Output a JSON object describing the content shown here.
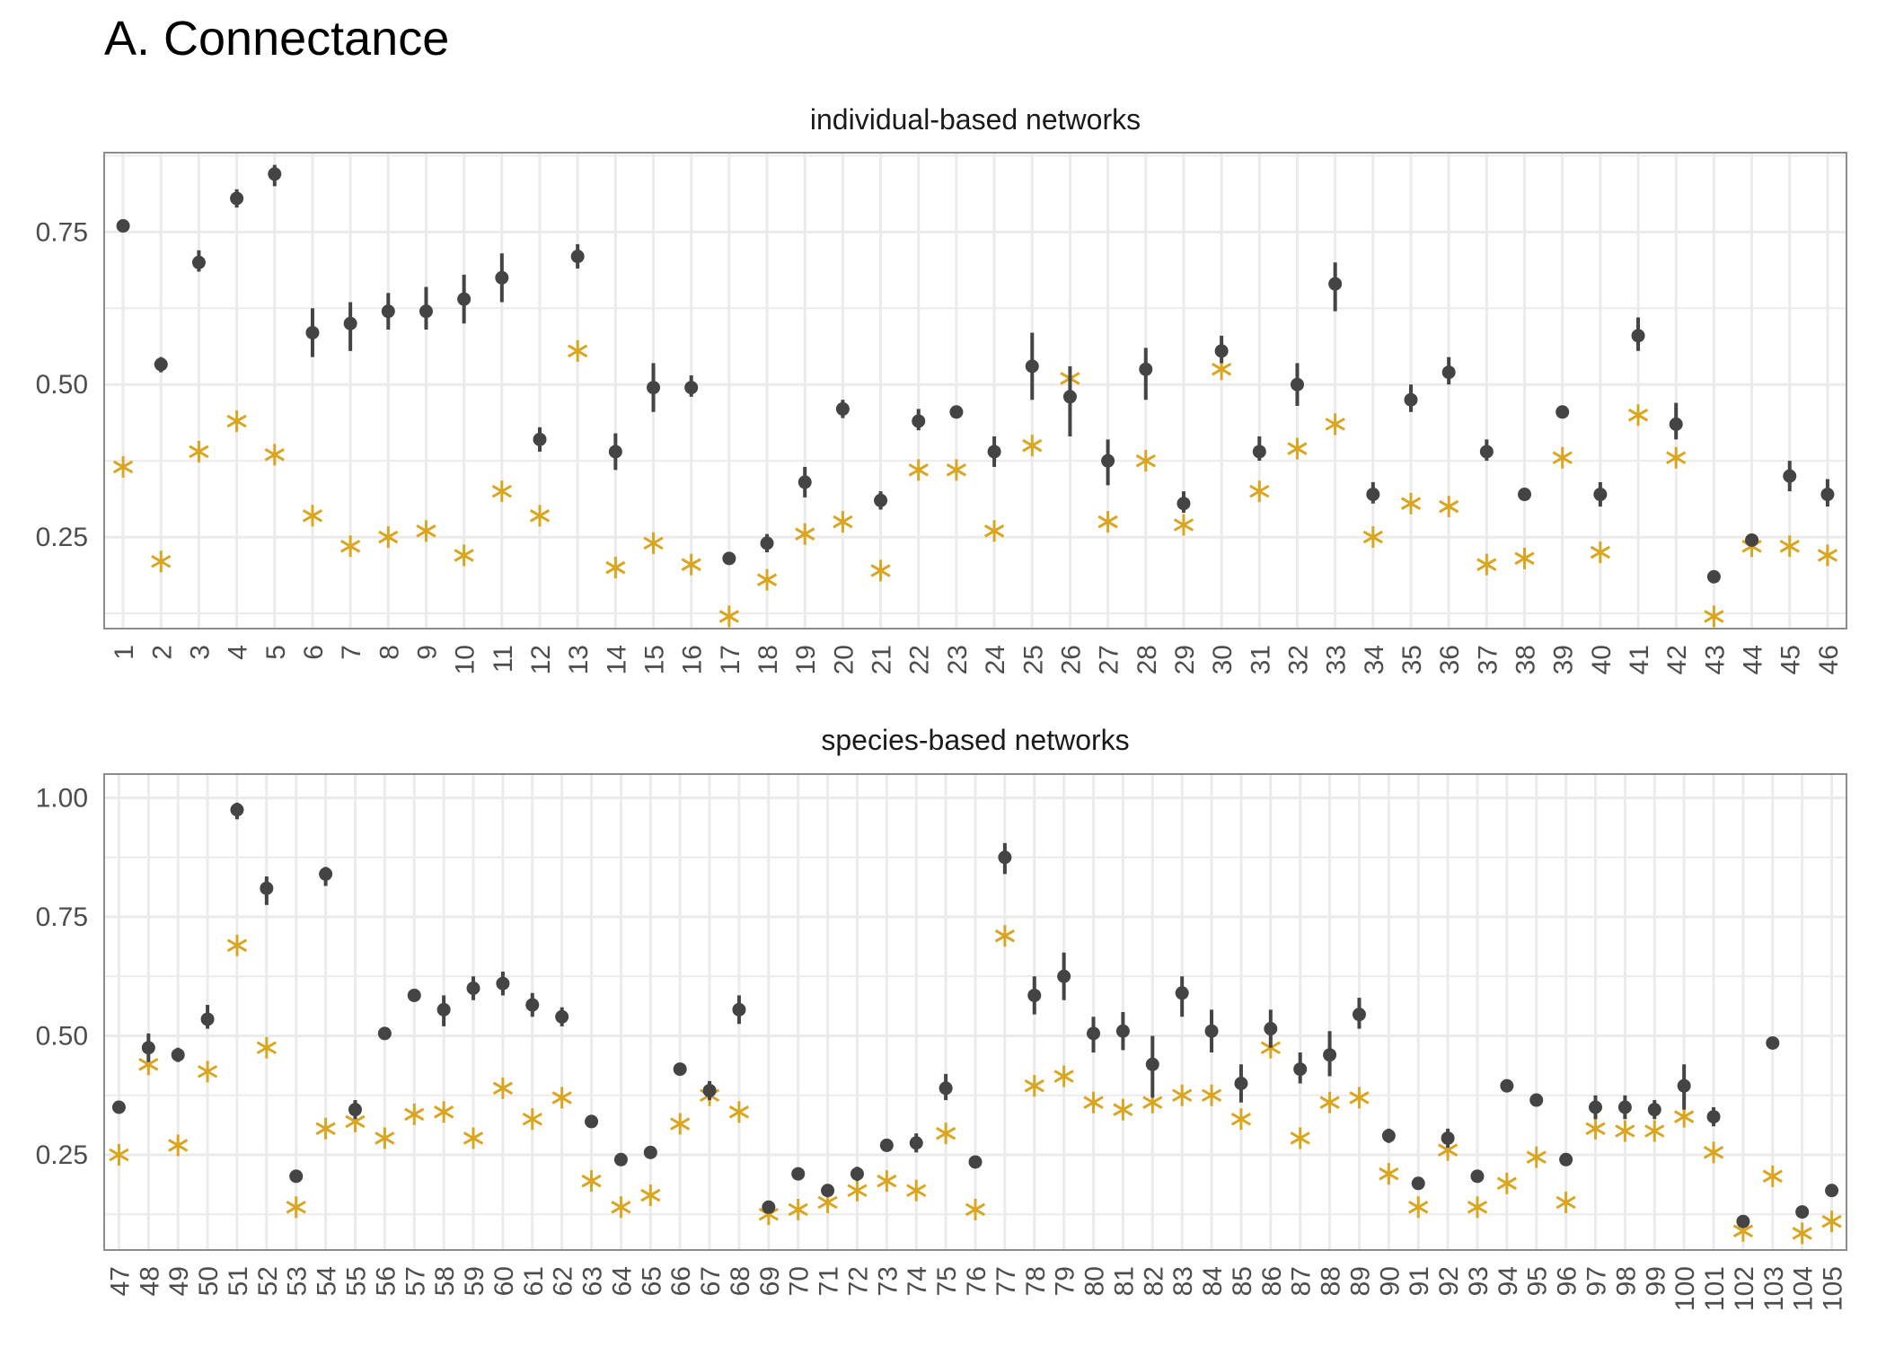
{
  "title": "A. Connectance",
  "colors": {
    "observed": "#444444",
    "expected": "#DAA520",
    "grid": "#ebebeb",
    "border": "#8c8c8c"
  },
  "chart_data": [
    {
      "type": "scatter",
      "panel": "individual-based networks",
      "ylim": [
        0.1,
        0.88
      ],
      "yticks": [
        0.25,
        0.5,
        0.75
      ],
      "ytick_labels": [
        "0.25",
        "0.50",
        "0.75"
      ],
      "grid": true,
      "categories": [
        "1",
        "2",
        "3",
        "4",
        "5",
        "6",
        "7",
        "8",
        "9",
        "10",
        "11",
        "12",
        "13",
        "14",
        "15",
        "16",
        "17",
        "18",
        "19",
        "20",
        "21",
        "22",
        "23",
        "24",
        "25",
        "26",
        "27",
        "28",
        "29",
        "30",
        "31",
        "32",
        "33",
        "34",
        "35",
        "36",
        "37",
        "38",
        "39",
        "40",
        "41",
        "42",
        "43",
        "44",
        "45",
        "46"
      ],
      "series": [
        {
          "marker": "point-with-range",
          "values": [
            0.76,
            0.533,
            0.7,
            0.805,
            0.845,
            0.585,
            0.6,
            0.62,
            0.62,
            0.64,
            0.675,
            0.41,
            0.71,
            0.39,
            0.495,
            0.495,
            0.215,
            0.24,
            0.34,
            0.46,
            0.31,
            0.44,
            0.455,
            0.39,
            0.53,
            0.48,
            0.375,
            0.525,
            0.305,
            0.555,
            0.39,
            0.5,
            0.665,
            0.32,
            0.475,
            0.52,
            0.39,
            0.32,
            0.455,
            0.32,
            0.58,
            0.435,
            0.185,
            0.245,
            0.35,
            0.32
          ],
          "lower": [
            0.755,
            0.52,
            0.685,
            0.79,
            0.825,
            0.545,
            0.555,
            0.59,
            0.59,
            0.6,
            0.635,
            0.39,
            0.69,
            0.36,
            0.455,
            0.48,
            0.21,
            0.225,
            0.315,
            0.445,
            0.295,
            0.425,
            0.445,
            0.365,
            0.475,
            0.415,
            0.335,
            0.475,
            0.29,
            0.535,
            0.375,
            0.465,
            0.62,
            0.305,
            0.455,
            0.5,
            0.375,
            0.31,
            0.445,
            0.3,
            0.555,
            0.41,
            0.18,
            0.24,
            0.325,
            0.3
          ],
          "upper": [
            0.765,
            0.545,
            0.72,
            0.82,
            0.86,
            0.625,
            0.635,
            0.65,
            0.66,
            0.68,
            0.715,
            0.43,
            0.73,
            0.42,
            0.535,
            0.515,
            0.22,
            0.255,
            0.365,
            0.475,
            0.325,
            0.46,
            0.465,
            0.415,
            0.585,
            0.53,
            0.41,
            0.56,
            0.325,
            0.58,
            0.415,
            0.535,
            0.7,
            0.34,
            0.5,
            0.545,
            0.41,
            0.33,
            0.465,
            0.34,
            0.61,
            0.47,
            0.195,
            0.255,
            0.375,
            0.345
          ]
        },
        {
          "marker": "asterisk",
          "values": [
            0.365,
            0.21,
            0.39,
            0.44,
            0.385,
            0.285,
            0.235,
            0.25,
            0.26,
            0.22,
            0.325,
            0.285,
            0.555,
            0.2,
            0.24,
            0.205,
            0.12,
            0.18,
            0.255,
            0.275,
            0.195,
            0.36,
            0.36,
            0.26,
            0.4,
            0.51,
            0.275,
            0.375,
            0.27,
            0.525,
            0.325,
            0.395,
            0.435,
            0.25,
            0.305,
            0.3,
            0.205,
            0.215,
            0.38,
            0.225,
            0.45,
            0.38,
            0.12,
            0.235,
            0.235,
            0.22
          ]
        }
      ]
    },
    {
      "type": "scatter",
      "panel": "species-based networks",
      "ylim": [
        0.05,
        1.05
      ],
      "yticks": [
        0.25,
        0.5,
        0.75,
        1.0
      ],
      "ytick_labels": [
        "0.25",
        "0.50",
        "0.75",
        "1.00"
      ],
      "grid": true,
      "categories": [
        "47",
        "48",
        "49",
        "50",
        "51",
        "52",
        "53",
        "54",
        "55",
        "56",
        "57",
        "58",
        "59",
        "60",
        "61",
        "62",
        "63",
        "64",
        "65",
        "66",
        "67",
        "68",
        "69",
        "70",
        "71",
        "72",
        "73",
        "74",
        "75",
        "76",
        "77",
        "78",
        "79",
        "80",
        "81",
        "82",
        "83",
        "84",
        "85",
        "86",
        "87",
        "88",
        "89",
        "90",
        "91",
        "92",
        "93",
        "94",
        "95",
        "96",
        "97",
        "98",
        "99",
        "100",
        "101",
        "102",
        "103",
        "104",
        "105"
      ],
      "series": [
        {
          "marker": "point-with-range",
          "values": [
            0.35,
            0.475,
            0.46,
            0.535,
            0.975,
            0.81,
            0.205,
            0.84,
            0.345,
            0.505,
            0.585,
            0.555,
            0.6,
            0.61,
            0.565,
            0.54,
            0.32,
            0.24,
            0.255,
            0.43,
            0.385,
            0.555,
            0.14,
            0.21,
            0.175,
            0.21,
            0.27,
            0.275,
            0.39,
            0.235,
            0.875,
            0.585,
            0.625,
            0.505,
            0.51,
            0.44,
            0.59,
            0.51,
            0.4,
            0.515,
            0.43,
            0.46,
            0.545,
            0.29,
            0.19,
            0.285,
            0.205,
            0.395,
            0.365,
            0.24,
            0.35,
            0.35,
            0.345,
            0.395,
            0.33,
            0.11,
            0.485,
            0.13,
            0.175
          ],
          "lower": [
            0.345,
            0.445,
            0.445,
            0.515,
            0.955,
            0.775,
            0.2,
            0.815,
            0.325,
            0.495,
            0.575,
            0.52,
            0.575,
            0.585,
            0.54,
            0.52,
            0.31,
            0.235,
            0.245,
            0.42,
            0.365,
            0.525,
            0.135,
            0.205,
            0.165,
            0.195,
            0.26,
            0.255,
            0.365,
            0.225,
            0.84,
            0.545,
            0.575,
            0.465,
            0.47,
            0.37,
            0.54,
            0.465,
            0.36,
            0.475,
            0.4,
            0.415,
            0.515,
            0.275,
            0.185,
            0.265,
            0.2,
            0.385,
            0.355,
            0.235,
            0.325,
            0.325,
            0.325,
            0.345,
            0.31,
            0.105,
            0.475,
            0.125,
            0.17
          ],
          "upper": [
            0.355,
            0.505,
            0.475,
            0.565,
            0.99,
            0.835,
            0.21,
            0.855,
            0.365,
            0.515,
            0.595,
            0.585,
            0.625,
            0.635,
            0.59,
            0.56,
            0.33,
            0.245,
            0.265,
            0.44,
            0.405,
            0.585,
            0.145,
            0.215,
            0.185,
            0.225,
            0.28,
            0.295,
            0.42,
            0.245,
            0.905,
            0.625,
            0.675,
            0.54,
            0.55,
            0.5,
            0.625,
            0.555,
            0.44,
            0.555,
            0.465,
            0.51,
            0.58,
            0.305,
            0.195,
            0.305,
            0.21,
            0.405,
            0.375,
            0.245,
            0.375,
            0.375,
            0.365,
            0.44,
            0.35,
            0.115,
            0.495,
            0.135,
            0.18
          ]
        },
        {
          "marker": "asterisk",
          "values": [
            0.25,
            0.44,
            0.27,
            0.425,
            0.69,
            0.475,
            0.14,
            0.305,
            0.32,
            0.285,
            0.335,
            0.34,
            0.285,
            0.39,
            0.325,
            0.37,
            0.195,
            0.14,
            0.165,
            0.315,
            0.375,
            0.34,
            0.125,
            0.135,
            0.15,
            0.175,
            0.195,
            0.175,
            0.295,
            0.135,
            0.71,
            0.395,
            0.415,
            0.36,
            0.345,
            0.36,
            0.375,
            0.375,
            0.325,
            0.475,
            0.285,
            0.36,
            0.37,
            0.21,
            0.14,
            0.26,
            0.14,
            0.19,
            0.245,
            0.15,
            0.305,
            0.3,
            0.3,
            0.33,
            0.255,
            0.09,
            0.205,
            0.085,
            0.11
          ]
        }
      ]
    }
  ]
}
